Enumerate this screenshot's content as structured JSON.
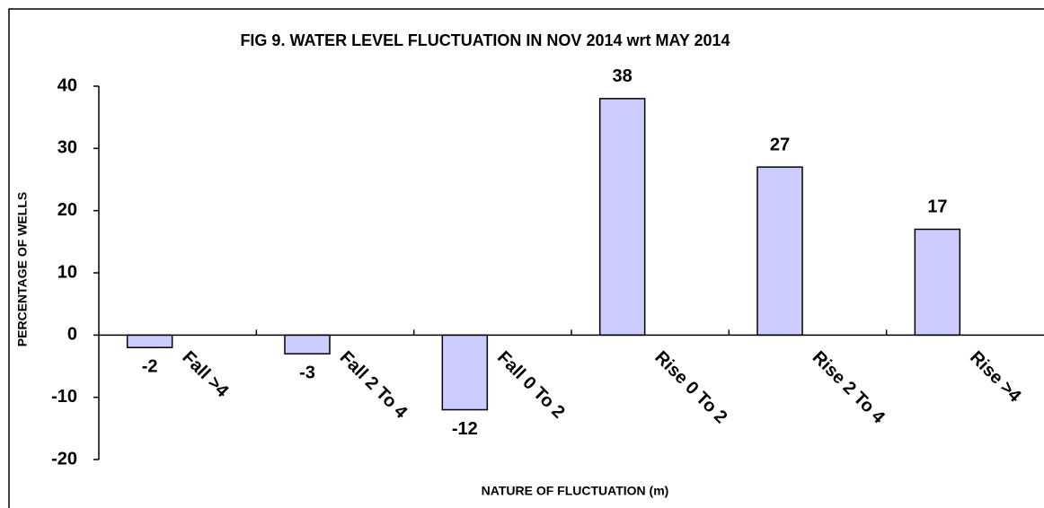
{
  "chart_data": {
    "type": "bar",
    "title": "FIG 9. WATER LEVEL FLUCTUATION IN NOV 2014 wrt MAY 2014",
    "x_label": "NATURE OF FLUCTUATION (m)",
    "y_label": "PERCENTAGE OF WELLS",
    "categories": [
      "Fall >4",
      "Fall 2 To 4",
      "Fall 0 To 2",
      "Rise 0 To 2",
      "Rise 2 To 4",
      "Rise >4"
    ],
    "values": [
      -2,
      -3,
      -12,
      38,
      27,
      17
    ],
    "color": "#ccccff",
    "ylim": [
      -20,
      40
    ],
    "yticks": [
      -20,
      -10,
      0,
      10,
      20,
      30,
      40
    ],
    "grid": false
  }
}
